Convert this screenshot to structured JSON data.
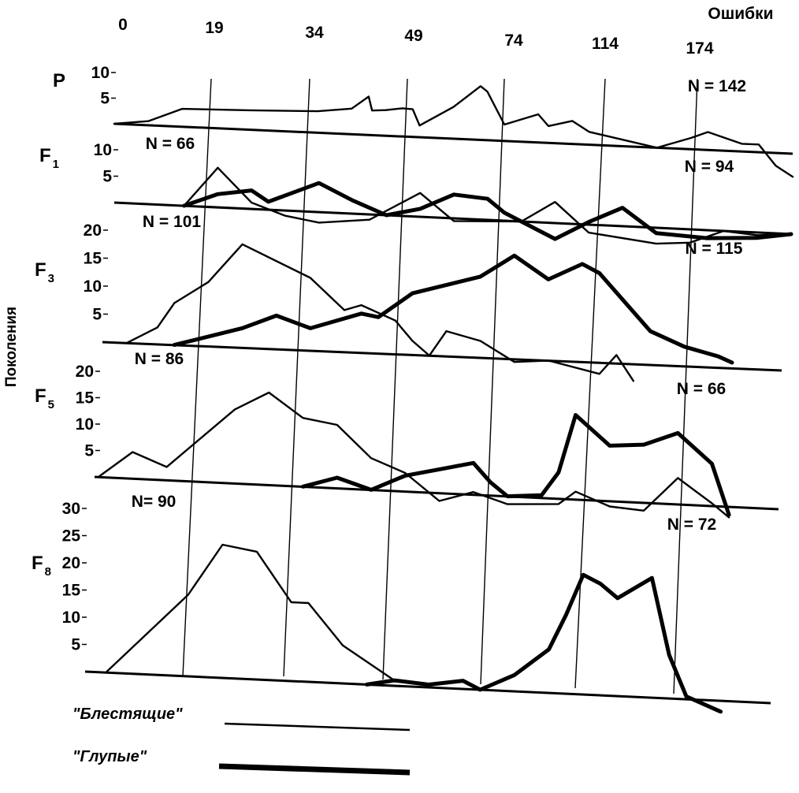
{
  "chart_data": {
    "type": "line",
    "x_label": "Ошибки",
    "y_label": "Поколения",
    "x_ticks": [
      "0",
      "19",
      "34",
      "49",
      "74",
      "114",
      "174"
    ],
    "legend": [
      {
        "label": "\"Блестящие\"",
        "style": "thin"
      },
      {
        "label": "\"Глупые\"",
        "style": "thick"
      }
    ],
    "panels": [
      {
        "id": "P",
        "name": "P",
        "sub": "",
        "y_ticks": [
          {
            "label": "10",
            "value": 10
          },
          {
            "label": "5",
            "value": 5
          }
        ],
        "ymax": 12,
        "n_labels": [
          "N = 142"
        ],
        "series": [
          {
            "style": "thin",
            "points": [
              [
                0.0,
                0.0
              ],
              [
                0.05,
                0.8
              ],
              [
                0.1,
                3.5
              ],
              [
                0.2,
                3.8
              ],
              [
                0.3,
                4.2
              ],
              [
                0.35,
                5.0
              ],
              [
                0.375,
                7.5
              ],
              [
                0.38,
                4.8
              ],
              [
                0.4,
                5.0
              ],
              [
                0.425,
                5.5
              ],
              [
                0.44,
                5.4
              ],
              [
                0.45,
                2.3
              ],
              [
                0.5,
                6.2
              ],
              [
                0.54,
                10.5
              ],
              [
                0.55,
                9.5
              ],
              [
                0.575,
                3.2
              ],
              [
                0.625,
                5.5
              ],
              [
                0.64,
                3.3
              ],
              [
                0.675,
                4.5
              ],
              [
                0.7,
                2.5
              ],
              [
                0.8,
                0.0
              ],
              [
                0.85,
                2.2
              ],
              [
                0.875,
                3.5
              ],
              [
                0.925,
                1.5
              ],
              [
                0.95,
                1.5
              ],
              [
                0.975,
                -2.5
              ],
              [
                1.0,
                -4.5
              ]
            ]
          }
        ]
      },
      {
        "id": "F1",
        "name": "F",
        "sub": "1",
        "y_ticks": [
          {
            "label": "10",
            "value": 10
          },
          {
            "label": "5",
            "value": 5
          }
        ],
        "ymax": 12,
        "n_labels": [
          "N = 66",
          "N = 94"
        ],
        "series": [
          {
            "style": "thin",
            "points": [
              [
                0.1,
                0.0
              ],
              [
                0.15,
                7.5
              ],
              [
                0.2,
                1.2
              ],
              [
                0.25,
                -1.0
              ],
              [
                0.3,
                -2.0
              ],
              [
                0.375,
                -1.0
              ],
              [
                0.45,
                4.5
              ],
              [
                0.5,
                -0.5
              ],
              [
                0.6,
                0.0
              ],
              [
                0.65,
                4.0
              ],
              [
                0.7,
                -1.5
              ],
              [
                0.8,
                -3.0
              ],
              [
                0.85,
                -2.5
              ],
              [
                0.9,
                0.0
              ],
              [
                0.95,
                -0.5
              ],
              [
                1.0,
                0.0
              ]
            ]
          },
          {
            "style": "thick",
            "points": [
              [
                0.1,
                0.0
              ],
              [
                0.15,
                2.5
              ],
              [
                0.2,
                3.5
              ],
              [
                0.225,
                1.5
              ],
              [
                0.3,
                5.5
              ],
              [
                0.35,
                2.5
              ],
              [
                0.4,
                0.0
              ],
              [
                0.45,
                1.5
              ],
              [
                0.5,
                4.5
              ],
              [
                0.55,
                4.0
              ],
              [
                0.575,
                1.5
              ],
              [
                0.6,
                0.0
              ],
              [
                0.65,
                -3.0
              ],
              [
                0.7,
                0.5
              ],
              [
                0.75,
                3.5
              ],
              [
                0.8,
                -1.0
              ],
              [
                0.875,
                -1.5
              ],
              [
                0.95,
                -1.0
              ],
              [
                1.0,
                0.0
              ]
            ]
          }
        ]
      },
      {
        "id": "F3",
        "name": "F",
        "sub": "3",
        "y_ticks": [
          {
            "label": "20",
            "value": 20
          },
          {
            "label": "15",
            "value": 15
          },
          {
            "label": "10",
            "value": 10
          },
          {
            "label": "5",
            "value": 5
          }
        ],
        "ymax": 22,
        "n_labels": [
          "N = 101",
          "N = 115"
        ],
        "series": [
          {
            "style": "thin",
            "points": [
              [
                0.03,
                0.0
              ],
              [
                0.075,
                3.0
              ],
              [
                0.1,
                7.5
              ],
              [
                0.15,
                11.5
              ],
              [
                0.2,
                18.5
              ],
              [
                0.3,
                13.0
              ],
              [
                0.35,
                7.5
              ],
              [
                0.375,
                8.5
              ],
              [
                0.425,
                6.0
              ],
              [
                0.45,
                2.5
              ],
              [
                0.475,
                0.0
              ],
              [
                0.5,
                4.5
              ],
              [
                0.55,
                3.0
              ],
              [
                0.6,
                -0.5
              ],
              [
                0.65,
                0.0
              ],
              [
                0.725,
                -2.0
              ],
              [
                0.75,
                1.5
              ],
              [
                0.775,
                -3.0
              ]
            ]
          },
          {
            "style": "thick",
            "points": [
              [
                0.1,
                0.0
              ],
              [
                0.2,
                3.5
              ],
              [
                0.25,
                6.0
              ],
              [
                0.3,
                4.0
              ],
              [
                0.375,
                7.0
              ],
              [
                0.4,
                6.5
              ],
              [
                0.45,
                11.0
              ],
              [
                0.55,
                14.5
              ],
              [
                0.6,
                18.5
              ],
              [
                0.65,
                14.5
              ],
              [
                0.7,
                17.5
              ],
              [
                0.725,
                16.0
              ],
              [
                0.8,
                6.0
              ],
              [
                0.85,
                3.5
              ],
              [
                0.9,
                2.0
              ],
              [
                0.92,
                1.0
              ]
            ]
          }
        ]
      },
      {
        "id": "F5",
        "name": "F",
        "sub": "5",
        "y_ticks": [
          {
            "label": "20",
            "value": 20
          },
          {
            "label": "15",
            "value": 15
          },
          {
            "label": "10",
            "value": 10
          },
          {
            "label": "5",
            "value": 5
          }
        ],
        "ymax": 22,
        "n_labels": [
          "N = 86",
          "N = 66"
        ],
        "series": [
          {
            "style": "thin",
            "points": [
              [
                0.0,
                0.0
              ],
              [
                0.05,
                5.0
              ],
              [
                0.1,
                2.5
              ],
              [
                0.2,
                14.0
              ],
              [
                0.25,
                17.5
              ],
              [
                0.3,
                13.0
              ],
              [
                0.35,
                12.0
              ],
              [
                0.4,
                6.0
              ],
              [
                0.45,
                3.5
              ],
              [
                0.5,
                -1.5
              ],
              [
                0.55,
                0.5
              ],
              [
                0.6,
                -1.5
              ],
              [
                0.675,
                -1.0
              ],
              [
                0.7,
                1.5
              ],
              [
                0.75,
                -1.0
              ],
              [
                0.8,
                -1.5
              ],
              [
                0.85,
                5.0
              ],
              [
                0.9,
                0.5
              ],
              [
                0.925,
                -2.0
              ]
            ]
          },
          {
            "style": "thick",
            "points": [
              [
                0.3,
                0.0
              ],
              [
                0.35,
                2.0
              ],
              [
                0.4,
                0.0
              ],
              [
                0.45,
                3.0
              ],
              [
                0.5,
                4.5
              ],
              [
                0.55,
                6.0
              ],
              [
                0.575,
                2.5
              ],
              [
                0.6,
                0.0
              ],
              [
                0.65,
                0.5
              ],
              [
                0.675,
                5.0
              ],
              [
                0.7,
                16.0
              ],
              [
                0.75,
                10.5
              ],
              [
                0.8,
                11.0
              ],
              [
                0.85,
                13.5
              ],
              [
                0.9,
                8.0
              ],
              [
                0.925,
                -1.5
              ]
            ]
          }
        ]
      },
      {
        "id": "F8",
        "name": "F",
        "sub": "8",
        "y_ticks": [
          {
            "label": "30",
            "value": 30
          },
          {
            "label": "25",
            "value": 25
          },
          {
            "label": "20",
            "value": 20
          },
          {
            "label": "15",
            "value": 15
          },
          {
            "label": "10",
            "value": 10
          },
          {
            "label": "5",
            "value": 5
          }
        ],
        "ymax": 32,
        "n_labels": [
          "N= 90",
          "N = 72"
        ],
        "series": [
          {
            "style": "thin",
            "points": [
              [
                0.03,
                0.0
              ],
              [
                0.15,
                15.0
              ],
              [
                0.2,
                24.5
              ],
              [
                0.25,
                23.5
              ],
              [
                0.3,
                14.5
              ],
              [
                0.325,
                14.5
              ],
              [
                0.375,
                7.0
              ],
              [
                0.45,
                1.0
              ],
              [
                0.5,
                0.5
              ]
            ]
          },
          {
            "style": "thick",
            "points": [
              [
                0.41,
                0.0
              ],
              [
                0.45,
                1.0
              ],
              [
                0.5,
                0.5
              ],
              [
                0.55,
                1.5
              ],
              [
                0.575,
                0.0
              ],
              [
                0.625,
                3.0
              ],
              [
                0.675,
                8.0
              ],
              [
                0.7,
                14.5
              ],
              [
                0.725,
                22.0
              ],
              [
                0.75,
                20.5
              ],
              [
                0.775,
                18.0
              ],
              [
                0.825,
                22.0
              ],
              [
                0.85,
                8.0
              ],
              [
                0.875,
                0.5
              ],
              [
                0.925,
                -2.0
              ]
            ]
          }
        ]
      }
    ]
  }
}
